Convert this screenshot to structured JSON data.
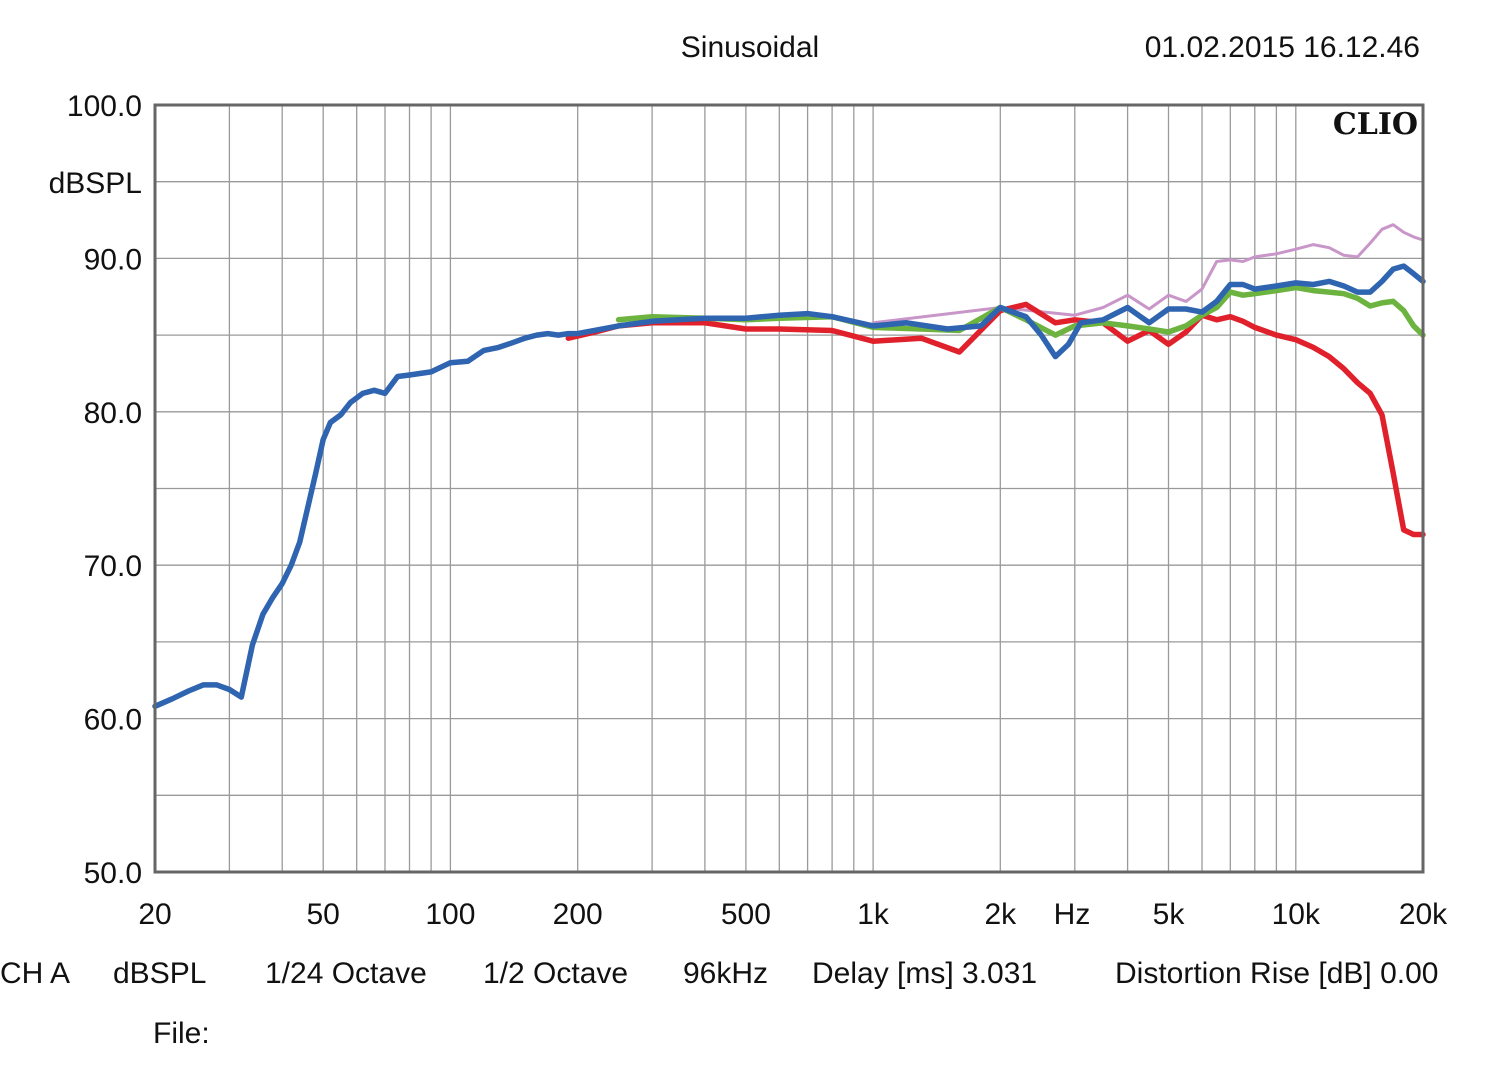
{
  "header": {
    "mode": "Sinusoidal",
    "datetime": "01.02.2015 16.12.46",
    "brand": "CLIO"
  },
  "footer": {
    "items": [
      "CH A",
      "dBSPL",
      "1/24 Octave",
      "1/2 Octave",
      "96kHz",
      "Delay [ms] 3.031",
      "Distortion Rise [dB] 0.00"
    ],
    "file_label": "File:"
  },
  "chart_data": {
    "type": "line",
    "ylabel": "dBSPL",
    "xlabel": "Hz",
    "xscale": "log",
    "xlim": [
      20,
      20000
    ],
    "ylim": [
      50,
      100
    ],
    "x_ticks": [
      20,
      50,
      100,
      200,
      500,
      1000,
      2000,
      5000,
      10000,
      20000
    ],
    "x_tick_labels": [
      "20",
      "50",
      "100",
      "200",
      "500",
      "1k",
      "2k",
      "5k",
      "10k",
      "20k"
    ],
    "y_ticks": [
      50,
      60,
      70,
      80,
      90,
      100
    ],
    "y_tick_labels": [
      "50.0",
      "60.0",
      "70.0",
      "80.0",
      "90.0",
      "100.0"
    ],
    "grid": true,
    "series": [
      {
        "color": "#c896c8",
        "x": [
          1000,
          2000,
          3000,
          3500,
          4000,
          4500,
          5000,
          5500,
          6000,
          6500,
          7000,
          7500,
          8000,
          9000,
          10000,
          11000,
          12000,
          13000,
          14000,
          15000,
          16000,
          17000,
          18000,
          19000,
          20000
        ],
        "y": [
          85.8,
          86.8,
          86.3,
          86.8,
          87.6,
          86.7,
          87.6,
          87.2,
          88.0,
          89.8,
          89.9,
          89.8,
          90.1,
          90.3,
          90.6,
          90.9,
          90.7,
          90.2,
          90.1,
          91.0,
          91.9,
          92.2,
          91.7,
          91.4,
          91.2
        ]
      },
      {
        "color": "#e0202a",
        "x": [
          190,
          220,
          250,
          300,
          400,
          500,
          600,
          800,
          1000,
          1300,
          1600,
          2000,
          2300,
          2700,
          3000,
          3500,
          4000,
          4500,
          5000,
          5500,
          6000,
          6500,
          7000,
          7500,
          8000,
          9000,
          10000,
          11000,
          12000,
          13000,
          14000,
          15000,
          16000,
          17000,
          18000,
          19000,
          20000
        ],
        "y": [
          84.8,
          85.2,
          85.6,
          85.8,
          85.8,
          85.4,
          85.4,
          85.3,
          84.6,
          84.8,
          83.9,
          86.6,
          87.0,
          85.8,
          86.0,
          85.8,
          84.6,
          85.3,
          84.4,
          85.2,
          86.3,
          86.0,
          86.2,
          85.9,
          85.5,
          85.0,
          84.7,
          84.2,
          83.6,
          82.8,
          81.9,
          81.2,
          79.8,
          76.0,
          72.3,
          72.0,
          72.0
        ]
      },
      {
        "color": "#6cb33f",
        "x": [
          250,
          300,
          400,
          500,
          600,
          800,
          1000,
          1300,
          1600,
          2000,
          2300,
          2700,
          3000,
          3500,
          4000,
          4500,
          5000,
          5500,
          6000,
          6500,
          7000,
          7500,
          8000,
          9000,
          10000,
          11000,
          12000,
          13000,
          14000,
          15000,
          16000,
          17000,
          18000,
          19000,
          20000
        ],
        "y": [
          86.0,
          86.2,
          86.1,
          86.0,
          86.1,
          86.2,
          85.5,
          85.4,
          85.3,
          86.8,
          86.0,
          85.0,
          85.6,
          85.8,
          85.6,
          85.4,
          85.2,
          85.6,
          86.3,
          86.8,
          87.8,
          87.6,
          87.7,
          87.9,
          88.1,
          87.9,
          87.8,
          87.7,
          87.4,
          86.9,
          87.1,
          87.2,
          86.6,
          85.6,
          85.0
        ]
      },
      {
        "color": "#2f64b0",
        "x": [
          20,
          22,
          24,
          26,
          28,
          30,
          32,
          34,
          36,
          38,
          40,
          42,
          44,
          46,
          48,
          50,
          52,
          55,
          58,
          62,
          66,
          70,
          75,
          80,
          85,
          90,
          100,
          110,
          120,
          130,
          140,
          150,
          160,
          170,
          180,
          190,
          200,
          250,
          300,
          400,
          500,
          600,
          700,
          800,
          1000,
          1200,
          1500,
          1800,
          2000,
          2300,
          2500,
          2700,
          2900,
          3100,
          3500,
          4000,
          4500,
          5000,
          5500,
          6000,
          6500,
          7000,
          7500,
          8000,
          9000,
          10000,
          11000,
          12000,
          13000,
          14000,
          15000,
          16000,
          17000,
          18000,
          19000,
          20000
        ],
        "y": [
          60.8,
          61.3,
          61.8,
          62.2,
          62.2,
          61.9,
          61.4,
          64.8,
          66.8,
          67.9,
          68.8,
          70.0,
          71.5,
          73.8,
          76.0,
          78.2,
          79.3,
          79.8,
          80.6,
          81.2,
          81.4,
          81.2,
          82.3,
          82.4,
          82.5,
          82.6,
          83.2,
          83.3,
          84.0,
          84.2,
          84.5,
          84.8,
          85.0,
          85.1,
          85.0,
          85.1,
          85.1,
          85.6,
          85.9,
          86.1,
          86.1,
          86.3,
          86.4,
          86.2,
          85.6,
          85.8,
          85.4,
          85.6,
          86.8,
          86.2,
          85.0,
          83.6,
          84.4,
          85.8,
          86.0,
          86.8,
          85.8,
          86.7,
          86.7,
          86.5,
          87.2,
          88.3,
          88.3,
          88.0,
          88.2,
          88.4,
          88.3,
          88.5,
          88.2,
          87.8,
          87.8,
          88.5,
          89.3,
          89.5,
          89.0,
          88.5
        ]
      }
    ]
  }
}
